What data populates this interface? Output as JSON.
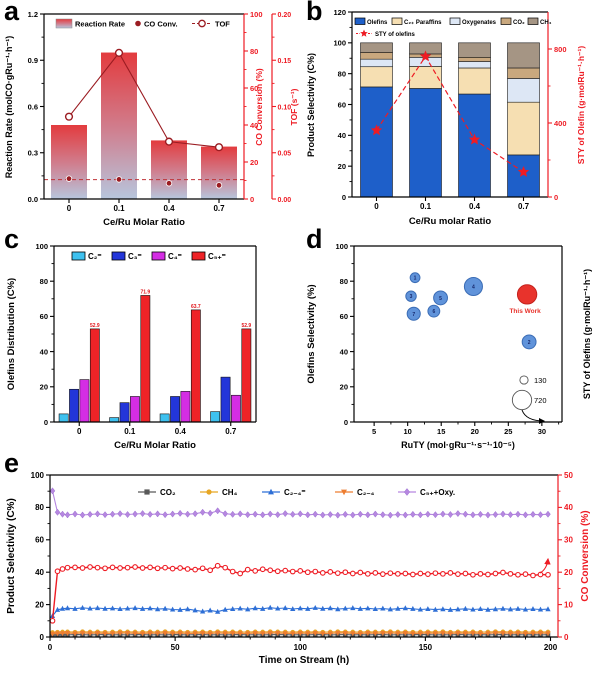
{
  "panels": {
    "a": {
      "letter": "a"
    },
    "b": {
      "letter": "b"
    },
    "c": {
      "letter": "c"
    },
    "d": {
      "letter": "d"
    },
    "e": {
      "letter": "e"
    }
  },
  "chart_data": [
    {
      "panel": "a",
      "type": "bar",
      "xlabel": "Ce/Ru Molar Ratio",
      "categories": [
        "0",
        "0.1",
        "0.4",
        "0.7"
      ],
      "left_axis": {
        "label": "Reaction Rate (molCO·gRu⁻¹·h⁻¹)",
        "min": 0,
        "max": 1.2,
        "ticks": [
          0.0,
          0.3,
          0.6,
          0.9,
          1.2
        ]
      },
      "right_axis_co": {
        "label": "CO Conversion (%)",
        "min": 0,
        "max": 100,
        "ticks": [
          0,
          20,
          40,
          60,
          80,
          100
        ]
      },
      "right_axis_tof": {
        "label": "TOF (s⁻¹)",
        "min": 0,
        "max": 0.2,
        "ticks": [
          "0.00",
          "0.05",
          "0.10",
          "0.15",
          "0.20"
        ]
      },
      "legend": [
        "Reaction Rate",
        "CO Conv.",
        "TOF"
      ],
      "series": [
        {
          "name": "Reaction Rate",
          "type": "bar",
          "axis": "left",
          "values": [
            0.48,
            0.95,
            0.38,
            0.34
          ]
        },
        {
          "name": "CO Conv.",
          "type": "scatter",
          "axis": "co",
          "values": [
            11.0,
            10.6,
            8.5,
            7.4
          ]
        },
        {
          "name": "TOF",
          "type": "line",
          "axis": "tof",
          "values": [
            0.089,
            0.158,
            0.062,
            0.056
          ]
        }
      ],
      "dashed_co_conversion": 10.5,
      "colors": {
        "bar_top": "#e33b3e",
        "bar_mid": "#d07e8e",
        "bar_bottom": "#b7c6dd",
        "marker_dark_red": "#9b1c22",
        "axis_red": "#ee1c24"
      }
    },
    {
      "panel": "b",
      "type": "stacked-bar",
      "xlabel": "Ce/Ru molar Ratio",
      "categories": [
        "0",
        "0.1",
        "0.4",
        "0.7"
      ],
      "left_axis": {
        "label": "Product Selectivity (C%)",
        "min": 0,
        "max": 120,
        "ticks": [
          0,
          20,
          40,
          60,
          80,
          100,
          120
        ]
      },
      "right_axis": {
        "label": "STY of Olefin (g·molRu⁻¹·h⁻¹)",
        "min": 0,
        "max": 1000,
        "ticks": [
          0,
          400,
          800
        ]
      },
      "series": [
        {
          "name": "Olefins",
          "color": "#1e5fc9",
          "values": [
            71.4,
            70.4,
            66.8,
            27.3
          ]
        },
        {
          "name": "C₂₊ Paraffins",
          "color": "#f6dfb2",
          "values": [
            13.1,
            14.3,
            16.9,
            34.2
          ]
        },
        {
          "name": "Oxygenates",
          "color": "#dde7f5",
          "values": [
            4.9,
            5.9,
            4.2,
            15.4
          ]
        },
        {
          "name": "CO₂",
          "color": "#c9a87e",
          "values": [
            4.4,
            2.2,
            2.7,
            6.8
          ]
        },
        {
          "name": "CH₄",
          "color": "#a59584",
          "values": [
            6.2,
            7.2,
            9.4,
            16.3
          ]
        }
      ],
      "sty_series": {
        "name": "STY of olefins",
        "color": "#ee1c24",
        "values": [
          360,
          760,
          310,
          135
        ]
      }
    },
    {
      "panel": "c",
      "type": "grouped-bar",
      "xlabel": "Ce/Ru Molar Ratio",
      "ylabel": "Olefins Distribution (C%)",
      "ymin": 0,
      "ymax": 100,
      "yticks": [
        0,
        20,
        40,
        60,
        80,
        100
      ],
      "categories": [
        "0",
        "0.1",
        "0.4",
        "0.7"
      ],
      "series": [
        {
          "name": "C₂⁼",
          "color": "#3ec1ef",
          "values": [
            4.6,
            2.5,
            4.6,
            5.9
          ]
        },
        {
          "name": "C₃⁼",
          "color": "#2336d9",
          "values": [
            18.6,
            11.0,
            14.5,
            25.5
          ]
        },
        {
          "name": "C₄⁼",
          "color": "#d42de4",
          "values": [
            24.1,
            14.5,
            17.4,
            15.2
          ]
        },
        {
          "name": "C₅₊⁼",
          "color": "#ee2327",
          "values": [
            52.9,
            71.9,
            63.7,
            52.9
          ],
          "labels": [
            "52.9",
            "71.9",
            "63.7",
            "52.9"
          ]
        }
      ]
    },
    {
      "panel": "d",
      "type": "scatter",
      "xlabel": "RuTY (mol·gRu⁻¹·s⁻¹·10⁻⁵)",
      "ylabel": "Olefins Selectivity (%)",
      "right_label": "STY of Olefins (g·molRu⁻¹·h⁻¹)",
      "xmin": 2,
      "xmax": 33,
      "xticks": [
        5,
        10,
        15,
        20,
        25,
        30
      ],
      "ymin": 0,
      "ymax": 100,
      "yticks": [
        0,
        20,
        40,
        60,
        80,
        100
      ],
      "points": [
        {
          "label": "1",
          "x": 11.1,
          "y": 82.0,
          "sty": 185
        },
        {
          "label": "2",
          "x": 28.1,
          "y": 45.5,
          "sty": 370
        },
        {
          "label": "3",
          "x": 10.5,
          "y": 71.5,
          "sty": 210
        },
        {
          "label": "4",
          "x": 19.8,
          "y": 77.0,
          "sty": 630
        },
        {
          "label": "5",
          "x": 14.9,
          "y": 70.5,
          "sty": 370
        },
        {
          "label": "6",
          "x": 13.9,
          "y": 63.0,
          "sty": 270
        },
        {
          "label": "7",
          "x": 10.9,
          "y": 61.5,
          "sty": 330
        }
      ],
      "this_work": {
        "label": "This Work",
        "x": 27.8,
        "y": 72.5,
        "sty": 720
      },
      "size_legend": [
        {
          "sty": 130,
          "label": "130"
        },
        {
          "sty": 720,
          "label": "720"
        }
      ],
      "colors": {
        "bubble": "#6093da",
        "bubble_edge": "#3a6cb5",
        "highlight": "#e8332c"
      }
    },
    {
      "panel": "e",
      "type": "line",
      "xlabel": "Time on Stream (h)",
      "left_axis": {
        "label": "Product Selectivity (C%)",
        "min": 0,
        "max": 100,
        "ticks": [
          0,
          20,
          40,
          60,
          80,
          100
        ]
      },
      "right_axis": {
        "label": "CO Conversion (%)",
        "min": 0,
        "max": 50,
        "ticks": [
          0,
          10,
          20,
          30,
          40,
          50
        ]
      },
      "xmin": 0,
      "xmax": 203,
      "xticks": [
        0,
        50,
        100,
        150,
        200
      ],
      "x": [
        1,
        3,
        5,
        7,
        10,
        13,
        16,
        19,
        22,
        25,
        28,
        31,
        34,
        37,
        40,
        43,
        46,
        49,
        52,
        55,
        58,
        61,
        64,
        67,
        70,
        73,
        76,
        79,
        82,
        85,
        88,
        91,
        94,
        97,
        100,
        103,
        106,
        109,
        112,
        115,
        118,
        121,
        124,
        127,
        130,
        133,
        136,
        139,
        142,
        145,
        148,
        151,
        154,
        157,
        160,
        163,
        166,
        169,
        172,
        175,
        178,
        181,
        184,
        187,
        190,
        193,
        196,
        199
      ],
      "series": [
        {
          "name": "CO₂",
          "marker": "square",
          "color": "#595959",
          "axis": "left",
          "in_legend": true,
          "values": [
            1.2,
            1.3,
            1.4,
            1.3,
            1.5,
            1.4,
            1.3,
            1.4,
            1.5,
            1.3,
            1.4,
            1.3,
            1.5,
            1.4,
            1.3,
            1.4,
            1.3,
            1.5,
            1.4,
            1.3,
            1.4,
            1.5,
            1.3,
            1.4,
            1.3,
            1.4,
            1.5,
            1.3,
            1.4,
            1.3,
            1.4,
            1.5,
            1.4,
            1.3,
            1.4,
            1.3,
            1.5,
            1.4,
            1.3,
            1.4,
            1.5,
            1.3,
            1.4,
            1.3,
            1.4,
            1.5,
            1.3,
            1.4,
            1.3,
            1.4,
            1.5,
            1.4,
            1.3,
            1.4,
            1.3,
            1.5,
            1.4,
            1.3,
            1.4,
            1.3,
            1.4,
            1.5,
            1.3,
            1.4,
            1.3,
            1.4,
            1.3,
            1.4
          ]
        },
        {
          "name": "CH₄",
          "marker": "circle",
          "color": "#e7a623",
          "axis": "left",
          "in_legend": true,
          "values": [
            2.8,
            3.0,
            3.1,
            3.2,
            3.0,
            3.3,
            3.1,
            3.2,
            3.0,
            3.1,
            3.3,
            3.2,
            3.1,
            3.0,
            3.2,
            3.1,
            3.3,
            3.1,
            3.2,
            3.0,
            3.1,
            3.2,
            3.0,
            3.3,
            3.1,
            3.2,
            3.1,
            3.0,
            3.2,
            3.1,
            3.3,
            3.2,
            3.1,
            3.0,
            3.2,
            3.1,
            3.2,
            3.0,
            3.1,
            3.3,
            3.2,
            3.1,
            3.0,
            3.2,
            3.1,
            3.2,
            3.3,
            3.1,
            3.2,
            3.0,
            3.1,
            3.2,
            3.1,
            3.3,
            3.0,
            3.2,
            3.1,
            3.2,
            3.0,
            3.1,
            3.3,
            3.2,
            3.1,
            3.2,
            3.0,
            3.1,
            3.2,
            3.1
          ]
        },
        {
          "name": "C₂₋₄⁼",
          "marker": "triangle-up",
          "color": "#2e6fd6",
          "axis": "left",
          "in_legend": true,
          "values": [
            13.0,
            16.8,
            17.5,
            17.8,
            17.4,
            18.0,
            17.6,
            17.9,
            17.5,
            17.7,
            17.3,
            17.6,
            17.9,
            17.4,
            17.7,
            17.2,
            17.5,
            17.0,
            16.8,
            17.2,
            16.5,
            15.8,
            16.4,
            15.6,
            16.9,
            17.3,
            17.6,
            17.1,
            17.8,
            17.4,
            18.1,
            17.6,
            17.9,
            17.3,
            17.7,
            17.4,
            18.0,
            17.5,
            17.8,
            17.2,
            17.6,
            17.9,
            17.4,
            17.7,
            17.3,
            17.6,
            17.1,
            17.5,
            17.8,
            17.4,
            17.0,
            17.3,
            16.9,
            17.2,
            16.8,
            17.1,
            17.4,
            17.0,
            17.3,
            16.9,
            17.2,
            17.5,
            17.1,
            17.4,
            17.0,
            17.3,
            17.0,
            17.2
          ]
        },
        {
          "name": "C₂₋₄",
          "marker": "triangle-down",
          "color": "#ed7d31",
          "axis": "left",
          "in_legend": true,
          "values": [
            2.0,
            2.2,
            2.3,
            2.4,
            2.2,
            2.5,
            2.3,
            2.4,
            2.2,
            2.3,
            2.5,
            2.4,
            2.3,
            2.2,
            2.4,
            2.3,
            2.5,
            2.3,
            2.4,
            2.2,
            2.3,
            2.4,
            2.2,
            2.5,
            2.3,
            2.4,
            2.3,
            2.2,
            2.4,
            2.3,
            2.5,
            2.4,
            2.3,
            2.2,
            2.4,
            2.3,
            2.4,
            2.2,
            2.3,
            2.5,
            2.4,
            2.3,
            2.2,
            2.4,
            2.3,
            2.4,
            2.5,
            2.3,
            2.4,
            2.2,
            2.3,
            2.4,
            2.3,
            2.5,
            2.2,
            2.4,
            2.3,
            2.4,
            2.2,
            2.3,
            2.5,
            2.4,
            2.3,
            2.4,
            2.2,
            2.3,
            2.4,
            2.3
          ]
        },
        {
          "name": "C₅₊+Oxy.",
          "marker": "diamond",
          "color": "#b687e0",
          "axis": "left",
          "in_legend": true,
          "values": [
            90.2,
            77.0,
            75.8,
            75.4,
            75.9,
            75.3,
            75.7,
            76.0,
            75.5,
            75.8,
            76.1,
            75.6,
            75.9,
            76.2,
            75.7,
            76.0,
            75.5,
            75.9,
            76.3,
            75.8,
            76.1,
            77.0,
            76.4,
            77.9,
            76.1,
            75.7,
            76.0,
            75.5,
            75.8,
            75.4,
            75.9,
            75.5,
            76.2,
            75.7,
            76.0,
            75.4,
            75.8,
            75.3,
            75.6,
            75.2,
            75.7,
            75.3,
            75.8,
            75.4,
            75.9,
            75.5,
            75.2,
            75.6,
            75.3,
            75.7,
            75.4,
            75.8,
            75.5,
            75.9,
            75.6,
            76.2,
            75.8,
            75.4,
            75.7,
            75.3,
            75.6,
            75.9,
            75.5,
            75.8,
            75.4,
            75.7,
            75.5,
            75.8
          ]
        },
        {
          "name": "CO Conversion",
          "marker": "circle-open",
          "color": "#ee1c24",
          "axis": "right",
          "in_legend": false,
          "values": [
            5.0,
            20.3,
            21.0,
            21.4,
            21.5,
            21.3,
            21.6,
            21.4,
            21.2,
            21.5,
            21.3,
            21.4,
            21.6,
            21.3,
            21.5,
            21.2,
            21.4,
            21.1,
            21.3,
            21.0,
            20.8,
            21.2,
            20.6,
            22.0,
            21.4,
            20.2,
            19.6,
            20.8,
            20.4,
            20.9,
            20.6,
            20.3,
            20.5,
            20.2,
            20.4,
            20.0,
            20.2,
            19.8,
            20.1,
            19.7,
            20.0,
            19.6,
            19.9,
            19.5,
            19.8,
            19.4,
            19.7,
            19.5,
            19.6,
            19.3,
            19.6,
            19.4,
            19.7,
            19.5,
            19.8,
            19.4,
            19.6,
            19.2,
            19.5,
            19.3,
            19.6,
            19.9,
            19.5,
            19.2,
            19.4,
            19.0,
            19.3,
            19.2
          ]
        }
      ]
    }
  ]
}
